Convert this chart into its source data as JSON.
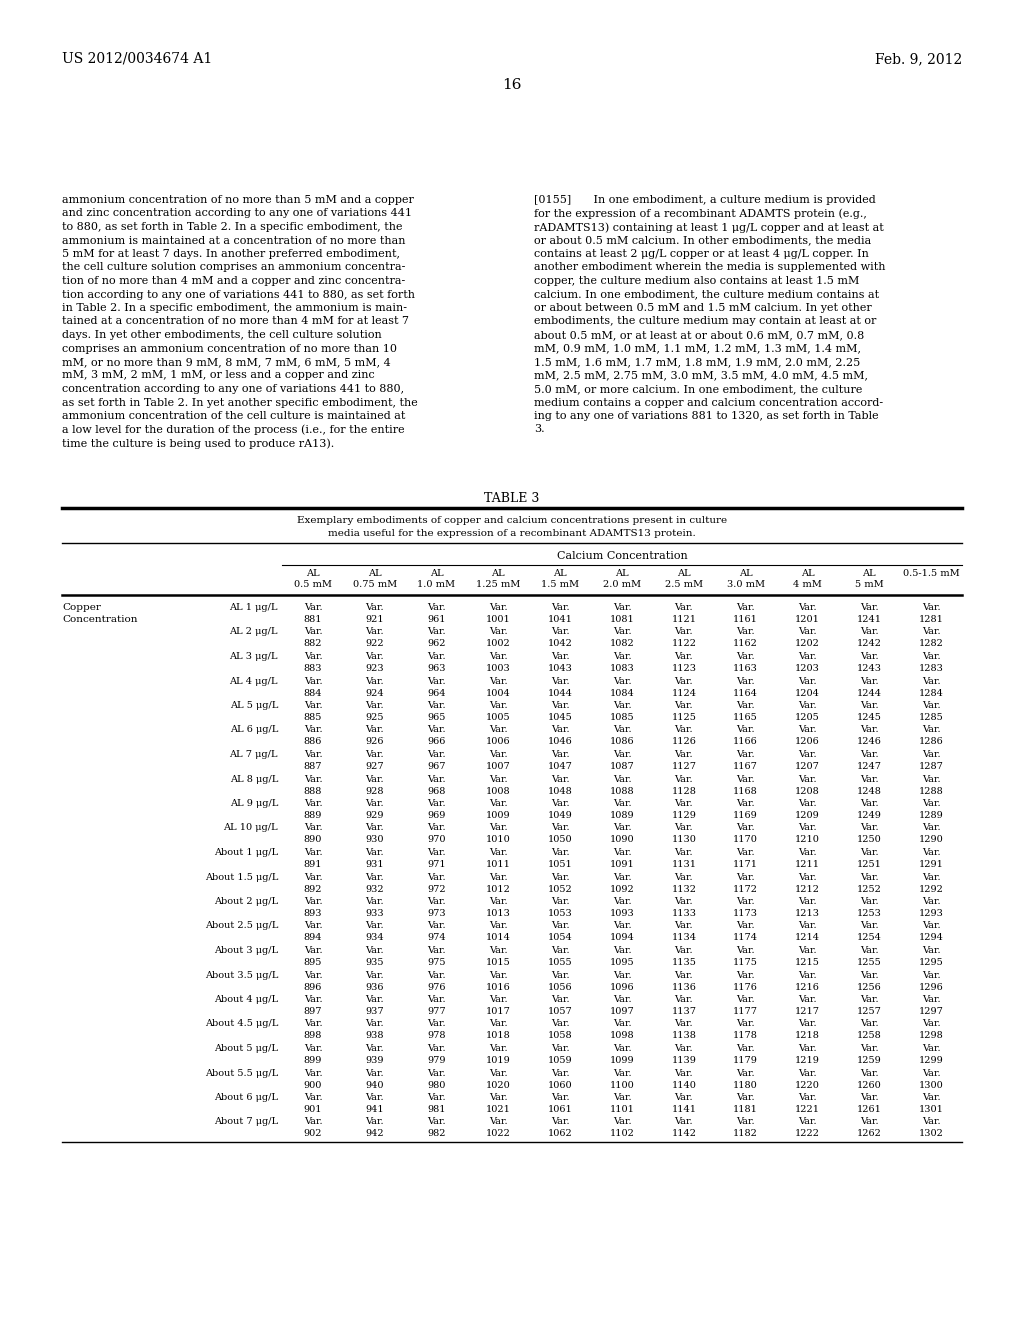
{
  "header_left": "US 2012/0034674 A1",
  "header_right": "Feb. 9, 2012",
  "page_number": "16",
  "left_text": "ammonium concentration of no more than 5 mM and a copper and zinc concentration according to any one of variations 441 to 880, as set forth in Table 2. In a specific embodiment, the ammonium is maintained at a concentration of no more than 5 mM for at least 7 days. In another preferred embodiment, the cell culture solution comprises an ammonium concentra-tion of no more than 4 mM and a copper and zinc concentra-tion according to any one of variations 441 to 880, as set forth in Table 2. In a specific embodiment, the ammonium is main-tained at a concentration of no more than 4 mM for at least 7 days. In yet other embodiments, the cell culture solution comprises an ammonium concentration of no more than 10 mM, or no more than 9 mM, 8 mM, 7 mM, 6 mM, 5 mM, 4 mM, 3 mM, 2 mM, 1 mM, or less and a copper and zinc concentration according to any one of variations 441 to 880, as set forth in Table 2. In yet another specific embodiment, the ammonium concentration of the cell culture is maintained at a low level for the duration of the process (i.e., for the entire time the culture is being used to produce rA13).",
  "right_para": "[0155]",
  "right_text": "In one embodiment, a culture medium is provided for the expression of a recombinant ADAMTS protein (e.g., rADAMTS13) containing at least 1 μg/L copper and at least at or about 0.5 mM calcium. In other embodiments, the media contains at least 2 μg/L copper or at least 4 μg/L copper. In another embodiment wherein the media is supplemented with copper, the culture medium also contains at least 1.5 mM calcium. In one embodiment, the culture medium contains at or about between 0.5 mM and 1.5 mM calcium. In yet other embodiments, the culture medium may contain at least at or about 0.5 mM, or at least at or about 0.6 mM, 0.7 mM, 0.8 mM, 0.9 mM, 1.0 mM, 1.1 mM, 1.2 mM, 1.3 mM, 1.4 mM, 1.5 mM, 1.6 mM, 1.7 mM, 1.8 mM, 1.9 mM, 2.0 mM, 2.25 mM, 2.5 mM, 2.75 mM, 3.0 mM, 3.5 mM, 4.0 mM, 4.5 mM, 5.0 mM, or more calcium. In one embodiment, the culture medium contains a copper and calcium concentration accord-ing to any one of variations 881 to 1320, as set forth in Table 3.",
  "table_title": "TABLE 3",
  "table_caption_line1": "Exemplary embodiments of copper and calcium concentrations present in culture",
  "table_caption_line2": "media useful for the expression of a recombinant ADAMTS13 protein.",
  "col_header_group": "Calcium Concentration",
  "col_headers": [
    "AL\n0.5 mM",
    "AL\n0.75 mM",
    "AL\n1.0 mM",
    "AL\n1.25 mM",
    "AL\n1.5 mM",
    "AL\n2.0 mM",
    "AL\n2.5 mM",
    "AL\n3.0 mM",
    "AL\n4 mM",
    "AL\n5 mM",
    "0.5-1.5 mM"
  ],
  "rows": [
    {
      "label": "AL 1 μg/L",
      "var_row": [
        "Var.",
        "Var.",
        "Var.",
        "Var.",
        "Var.",
        "Var.",
        "Var.",
        "Var.",
        "Var.",
        "Var.",
        "Var."
      ],
      "num_row": [
        "881",
        "921",
        "961",
        "1001",
        "1041",
        "1081",
        "1121",
        "1161",
        "1201",
        "1241",
        "1281"
      ]
    },
    {
      "label": "AL 2 μg/L",
      "var_row": [
        "Var.",
        "Var.",
        "Var.",
        "Var.",
        "Var.",
        "Var.",
        "Var.",
        "Var.",
        "Var.",
        "Var.",
        "Var."
      ],
      "num_row": [
        "882",
        "922",
        "962",
        "1002",
        "1042",
        "1082",
        "1122",
        "1162",
        "1202",
        "1242",
        "1282"
      ]
    },
    {
      "label": "AL 3 μg/L",
      "var_row": [
        "Var.",
        "Var.",
        "Var.",
        "Var.",
        "Var.",
        "Var.",
        "Var.",
        "Var.",
        "Var.",
        "Var.",
        "Var."
      ],
      "num_row": [
        "883",
        "923",
        "963",
        "1003",
        "1043",
        "1083",
        "1123",
        "1163",
        "1203",
        "1243",
        "1283"
      ]
    },
    {
      "label": "AL 4 μg/L",
      "var_row": [
        "Var.",
        "Var.",
        "Var.",
        "Var.",
        "Var.",
        "Var.",
        "Var.",
        "Var.",
        "Var.",
        "Var.",
        "Var."
      ],
      "num_row": [
        "884",
        "924",
        "964",
        "1004",
        "1044",
        "1084",
        "1124",
        "1164",
        "1204",
        "1244",
        "1284"
      ]
    },
    {
      "label": "AL 5 μg/L",
      "var_row": [
        "Var.",
        "Var.",
        "Var.",
        "Var.",
        "Var.",
        "Var.",
        "Var.",
        "Var.",
        "Var.",
        "Var.",
        "Var."
      ],
      "num_row": [
        "885",
        "925",
        "965",
        "1005",
        "1045",
        "1085",
        "1125",
        "1165",
        "1205",
        "1245",
        "1285"
      ]
    },
    {
      "label": "AL 6 μg/L",
      "var_row": [
        "Var.",
        "Var.",
        "Var.",
        "Var.",
        "Var.",
        "Var.",
        "Var.",
        "Var.",
        "Var.",
        "Var.",
        "Var."
      ],
      "num_row": [
        "886",
        "926",
        "966",
        "1006",
        "1046",
        "1086",
        "1126",
        "1166",
        "1206",
        "1246",
        "1286"
      ]
    },
    {
      "label": "AL 7 μg/L",
      "var_row": [
        "Var.",
        "Var.",
        "Var.",
        "Var.",
        "Var.",
        "Var.",
        "Var.",
        "Var.",
        "Var.",
        "Var.",
        "Var."
      ],
      "num_row": [
        "887",
        "927",
        "967",
        "1007",
        "1047",
        "1087",
        "1127",
        "1167",
        "1207",
        "1247",
        "1287"
      ]
    },
    {
      "label": "AL 8 μg/L",
      "var_row": [
        "Var.",
        "Var.",
        "Var.",
        "Var.",
        "Var.",
        "Var.",
        "Var.",
        "Var.",
        "Var.",
        "Var.",
        "Var."
      ],
      "num_row": [
        "888",
        "928",
        "968",
        "1008",
        "1048",
        "1088",
        "1128",
        "1168",
        "1208",
        "1248",
        "1288"
      ]
    },
    {
      "label": "AL 9 μg/L",
      "var_row": [
        "Var.",
        "Var.",
        "Var.",
        "Var.",
        "Var.",
        "Var.",
        "Var.",
        "Var.",
        "Var.",
        "Var.",
        "Var."
      ],
      "num_row": [
        "889",
        "929",
        "969",
        "1009",
        "1049",
        "1089",
        "1129",
        "1169",
        "1209",
        "1249",
        "1289"
      ]
    },
    {
      "label": "AL 10 μg/L",
      "var_row": [
        "Var.",
        "Var.",
        "Var.",
        "Var.",
        "Var.",
        "Var.",
        "Var.",
        "Var.",
        "Var.",
        "Var.",
        "Var."
      ],
      "num_row": [
        "890",
        "930",
        "970",
        "1010",
        "1050",
        "1090",
        "1130",
        "1170",
        "1210",
        "1250",
        "1290"
      ]
    },
    {
      "label": "About 1 μg/L",
      "var_row": [
        "Var.",
        "Var.",
        "Var.",
        "Var.",
        "Var.",
        "Var.",
        "Var.",
        "Var.",
        "Var.",
        "Var.",
        "Var."
      ],
      "num_row": [
        "891",
        "931",
        "971",
        "1011",
        "1051",
        "1091",
        "1131",
        "1171",
        "1211",
        "1251",
        "1291"
      ]
    },
    {
      "label": "About 1.5 μg/L",
      "var_row": [
        "Var.",
        "Var.",
        "Var.",
        "Var.",
        "Var.",
        "Var.",
        "Var.",
        "Var.",
        "Var.",
        "Var.",
        "Var."
      ],
      "num_row": [
        "892",
        "932",
        "972",
        "1012",
        "1052",
        "1092",
        "1132",
        "1172",
        "1212",
        "1252",
        "1292"
      ]
    },
    {
      "label": "About 2 μg/L",
      "var_row": [
        "Var.",
        "Var.",
        "Var.",
        "Var.",
        "Var.",
        "Var.",
        "Var.",
        "Var.",
        "Var.",
        "Var.",
        "Var."
      ],
      "num_row": [
        "893",
        "933",
        "973",
        "1013",
        "1053",
        "1093",
        "1133",
        "1173",
        "1213",
        "1253",
        "1293"
      ]
    },
    {
      "label": "About 2.5 μg/L",
      "var_row": [
        "Var.",
        "Var.",
        "Var.",
        "Var.",
        "Var.",
        "Var.",
        "Var.",
        "Var.",
        "Var.",
        "Var.",
        "Var."
      ],
      "num_row": [
        "894",
        "934",
        "974",
        "1014",
        "1054",
        "1094",
        "1134",
        "1174",
        "1214",
        "1254",
        "1294"
      ]
    },
    {
      "label": "About 3 μg/L",
      "var_row": [
        "Var.",
        "Var.",
        "Var.",
        "Var.",
        "Var.",
        "Var.",
        "Var.",
        "Var.",
        "Var.",
        "Var.",
        "Var."
      ],
      "num_row": [
        "895",
        "935",
        "975",
        "1015",
        "1055",
        "1095",
        "1135",
        "1175",
        "1215",
        "1255",
        "1295"
      ]
    },
    {
      "label": "About 3.5 μg/L",
      "var_row": [
        "Var.",
        "Var.",
        "Var.",
        "Var.",
        "Var.",
        "Var.",
        "Var.",
        "Var.",
        "Var.",
        "Var.",
        "Var."
      ],
      "num_row": [
        "896",
        "936",
        "976",
        "1016",
        "1056",
        "1096",
        "1136",
        "1176",
        "1216",
        "1256",
        "1296"
      ]
    },
    {
      "label": "About 4 μg/L",
      "var_row": [
        "Var.",
        "Var.",
        "Var.",
        "Var.",
        "Var.",
        "Var.",
        "Var.",
        "Var.",
        "Var.",
        "Var.",
        "Var."
      ],
      "num_row": [
        "897",
        "937",
        "977",
        "1017",
        "1057",
        "1097",
        "1137",
        "1177",
        "1217",
        "1257",
        "1297"
      ]
    },
    {
      "label": "About 4.5 μg/L",
      "var_row": [
        "Var.",
        "Var.",
        "Var.",
        "Var.",
        "Var.",
        "Var.",
        "Var.",
        "Var.",
        "Var.",
        "Var.",
        "Var."
      ],
      "num_row": [
        "898",
        "938",
        "978",
        "1018",
        "1058",
        "1098",
        "1138",
        "1178",
        "1218",
        "1258",
        "1298"
      ]
    },
    {
      "label": "About 5 μg/L",
      "var_row": [
        "Var.",
        "Var.",
        "Var.",
        "Var.",
        "Var.",
        "Var.",
        "Var.",
        "Var.",
        "Var.",
        "Var.",
        "Var."
      ],
      "num_row": [
        "899",
        "939",
        "979",
        "1019",
        "1059",
        "1099",
        "1139",
        "1179",
        "1219",
        "1259",
        "1299"
      ]
    },
    {
      "label": "About 5.5 μg/L",
      "var_row": [
        "Var.",
        "Var.",
        "Var.",
        "Var.",
        "Var.",
        "Var.",
        "Var.",
        "Var.",
        "Var.",
        "Var.",
        "Var."
      ],
      "num_row": [
        "900",
        "940",
        "980",
        "1020",
        "1060",
        "1100",
        "1140",
        "1180",
        "1220",
        "1260",
        "1300"
      ]
    },
    {
      "label": "About 6 μg/L",
      "var_row": [
        "Var.",
        "Var.",
        "Var.",
        "Var.",
        "Var.",
        "Var.",
        "Var.",
        "Var.",
        "Var.",
        "Var.",
        "Var."
      ],
      "num_row": [
        "901",
        "941",
        "981",
        "1021",
        "1061",
        "1101",
        "1141",
        "1181",
        "1221",
        "1261",
        "1301"
      ]
    },
    {
      "label": "About 7 μg/L",
      "var_row": [
        "Var.",
        "Var.",
        "Var.",
        "Var.",
        "Var.",
        "Var.",
        "Var.",
        "Var.",
        "Var.",
        "Var.",
        "Var."
      ],
      "num_row": [
        "902",
        "942",
        "982",
        "1022",
        "1062",
        "1102",
        "1142",
        "1182",
        "1222",
        "1262",
        "1302"
      ]
    }
  ]
}
